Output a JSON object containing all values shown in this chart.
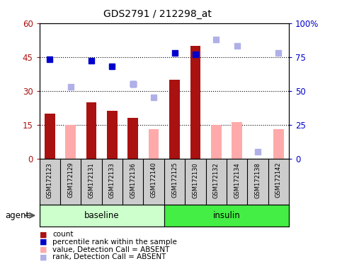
{
  "title": "GDS2791 / 212298_at",
  "samples": [
    "GSM172123",
    "GSM172129",
    "GSM172131",
    "GSM172133",
    "GSM172136",
    "GSM172140",
    "GSM172125",
    "GSM172130",
    "GSM172132",
    "GSM172134",
    "GSM172138",
    "GSM172142"
  ],
  "groups": [
    "baseline",
    "baseline",
    "baseline",
    "baseline",
    "baseline",
    "baseline",
    "insulin",
    "insulin",
    "insulin",
    "insulin",
    "insulin",
    "insulin"
  ],
  "count_present": [
    20,
    null,
    25,
    21,
    18,
    null,
    35,
    50,
    null,
    null,
    null,
    null
  ],
  "count_absent": [
    null,
    15,
    null,
    null,
    null,
    13,
    null,
    null,
    15,
    16,
    null,
    13
  ],
  "rank_present": [
    73,
    null,
    72,
    68,
    55,
    null,
    78,
    77,
    null,
    null,
    null,
    null
  ],
  "rank_absent": [
    null,
    53,
    null,
    null,
    55,
    45,
    null,
    null,
    88,
    83,
    5,
    78
  ],
  "left_ylim": [
    0,
    60
  ],
  "right_ylim": [
    0,
    100
  ],
  "left_yticks": [
    0,
    15,
    30,
    45,
    60
  ],
  "right_yticks": [
    0,
    25,
    50,
    75,
    100
  ],
  "right_yticklabels": [
    "0",
    "25",
    "50",
    "75",
    "100%"
  ],
  "left_yticklabels": [
    "0",
    "15",
    "30",
    "45",
    "60"
  ],
  "color_count_present": "#aa1111",
  "color_rank_present": "#0000cc",
  "color_count_absent": "#ffaaaa",
  "color_rank_absent": "#b0b0e8",
  "baseline_color": "#ccffcc",
  "insulin_color": "#44ee44",
  "bg_color_labels": "#cccccc",
  "agent_label": "agent",
  "legend_items": [
    {
      "color": "#aa1111",
      "label": "count",
      "marker": "s"
    },
    {
      "color": "#0000cc",
      "label": "percentile rank within the sample",
      "marker": "s"
    },
    {
      "color": "#ffaaaa",
      "label": "value, Detection Call = ABSENT",
      "marker": "s"
    },
    {
      "color": "#b0b0e8",
      "label": "rank, Detection Call = ABSENT",
      "marker": "s"
    }
  ]
}
